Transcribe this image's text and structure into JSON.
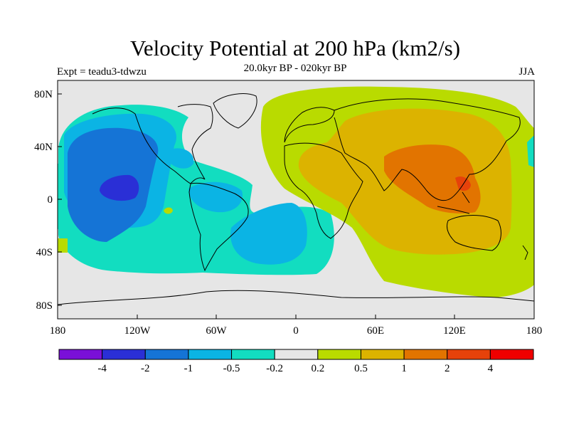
{
  "header": {
    "title": "Velocity Potential at 200 hPa (km2/s)",
    "subtitle": "20.0kyr BP - 020kyr BP",
    "experiment": "Expt = teadu3-tdwzu",
    "season": "JJA"
  },
  "axes": {
    "lat_ticks": [
      "80N",
      "40N",
      "0",
      "40S",
      "80S"
    ],
    "lat_values": [
      80,
      40,
      0,
      -40,
      -80
    ],
    "lon_ticks": [
      "180",
      "120W",
      "60W",
      "0",
      "60E",
      "120E",
      "180"
    ],
    "lon_values": [
      -180,
      -120,
      -60,
      0,
      60,
      120,
      180
    ]
  },
  "colorbar": {
    "colors": [
      "#7a10d8",
      "#2a2fd6",
      "#1574d6",
      "#0bb4e4",
      "#12ddc0",
      "#e6e6e6",
      "#b9db00",
      "#dcb300",
      "#e27400",
      "#e6420a",
      "#f00000"
    ],
    "labels": [
      "-4",
      "-2",
      "-1",
      "-0.5",
      "-0.2",
      "0.2",
      "0.5",
      "1",
      "2",
      "4"
    ]
  },
  "chart_data": {
    "type": "heatmap",
    "title": "Velocity Potential at 200 hPa (km2/s)",
    "variable": "velocity potential",
    "units": "km2/s",
    "levels": [
      -4,
      -2,
      -1,
      -0.5,
      -0.2,
      0.2,
      0.5,
      1,
      2,
      4
    ],
    "xlim": [
      -180,
      180
    ],
    "ylim": [
      -90,
      90
    ],
    "regions": [
      {
        "name": "pacific-cyan",
        "level": -0.2,
        "lon": [
          -175,
          -10
        ],
        "lat": [
          -55,
          70
        ]
      },
      {
        "name": "pacific-light-blue",
        "level": -0.5,
        "lon": [
          -170,
          -95
        ],
        "lat": [
          -30,
          65
        ]
      },
      {
        "name": "pacific-blue",
        "level": -1,
        "lon": [
          -160,
          -110
        ],
        "lat": [
          -35,
          50
        ]
      },
      {
        "name": "pacific-dark-blue",
        "level": -2,
        "lon": [
          -145,
          -120
        ],
        "lat": [
          5,
          20
        ]
      },
      {
        "name": "south-atlantic-light-blue",
        "level": -0.5,
        "lon": [
          -55,
          -20
        ],
        "lat": [
          -45,
          -2
        ]
      },
      {
        "name": "eastern-hemisphere-yellow-green",
        "level": 0.2,
        "lon": [
          -25,
          180
        ],
        "lat": [
          -70,
          90
        ]
      },
      {
        "name": "eurasia-orange-yellow",
        "level": 0.5,
        "lon": [
          15,
          165
        ],
        "lat": [
          -40,
          65
        ]
      },
      {
        "name": "asia-orange",
        "level": 1,
        "lon": [
          70,
          135
        ],
        "lat": [
          -5,
          40
        ]
      },
      {
        "name": "maritime-dark-orange",
        "level": 1,
        "lon": [
          105,
          145
        ],
        "lat": [
          0,
          15
        ]
      }
    ]
  }
}
